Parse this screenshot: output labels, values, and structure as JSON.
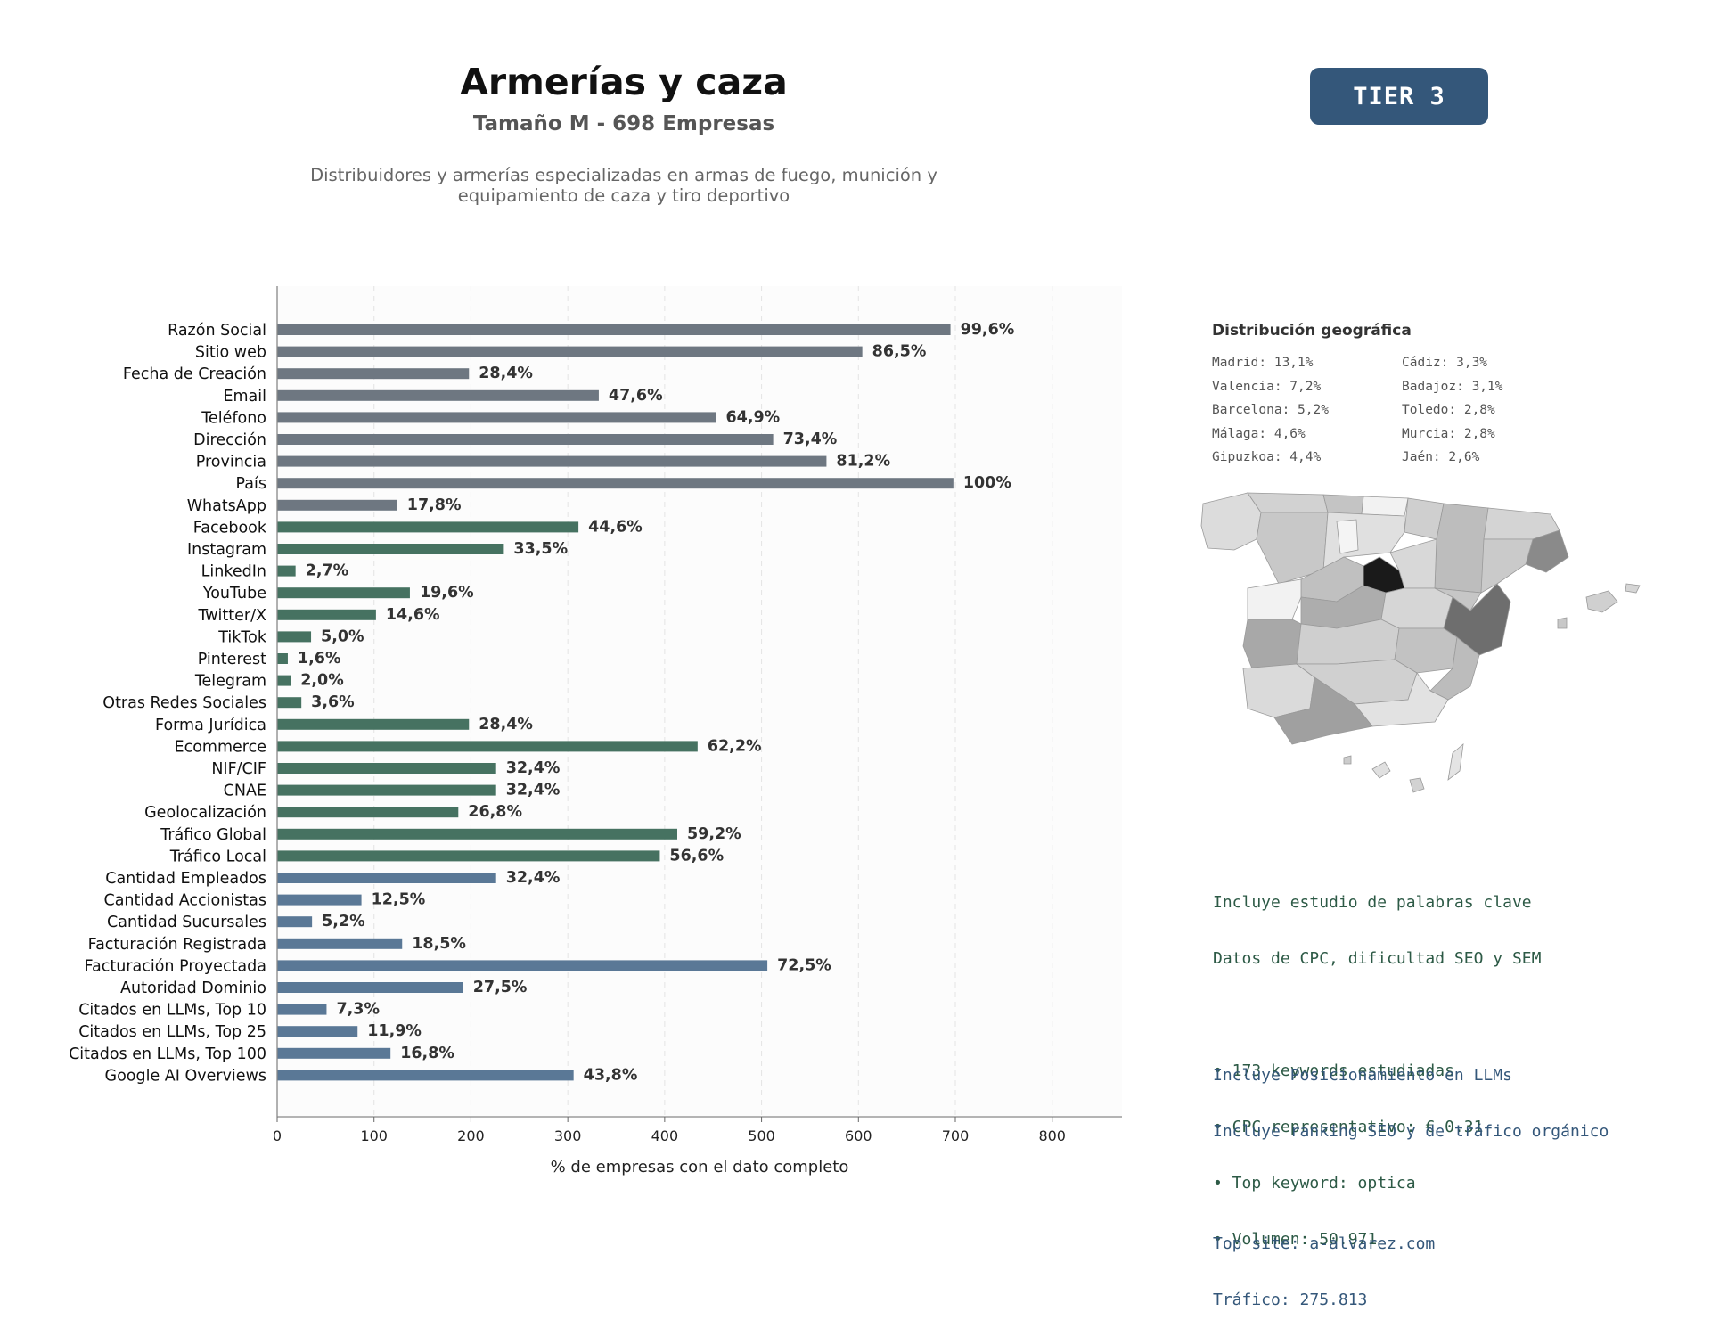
{
  "header": {
    "title": "Armerías y caza",
    "subtitle": "Tamaño M - 698 Empresas",
    "description_line1": "Distribuidores y armerías especializadas en armas de fuego, munición y",
    "description_line2": "equipamiento de caza y tiro deportivo",
    "tier_label": "TIER 3"
  },
  "colors": {
    "basic": "#6e7781",
    "social": "#467261",
    "business": "#5a7896",
    "badge": "#34577a",
    "keyword_text": "#2d5a46",
    "llm_text": "#34577a"
  },
  "chart_data": {
    "type": "bar",
    "orientation": "horizontal",
    "xlabel": "% de empresas con el dato completo",
    "xlim": [
      0,
      872
    ],
    "xticks": [
      0,
      100,
      200,
      300,
      400,
      500,
      600,
      700,
      800
    ],
    "grid": "vertical dashed",
    "categories": [
      "Razón Social",
      "Sitio web",
      "Fecha de Creación",
      "Email",
      "Teléfono",
      "Dirección",
      "Provincia",
      "País",
      "WhatsApp",
      "Facebook",
      "Instagram",
      "LinkedIn",
      "YouTube",
      "Twitter/X",
      "TikTok",
      "Pinterest",
      "Telegram",
      "Otras Redes Sociales",
      "Forma Jurídica",
      "Ecommerce",
      "NIF/CIF",
      "CNAE",
      "Geolocalización",
      "Tráfico Global",
      "Tráfico Local",
      "Cantidad Empleados",
      "Cantidad Accionistas",
      "Cantidad Sucursales",
      "Facturación Registrada",
      "Facturación Proyectada",
      "Autoridad Dominio",
      "Citados en LLMs, Top 10",
      "Citados en LLMs, Top 25",
      "Citados en LLMs, Top 100",
      "Google AI Overviews"
    ],
    "values": [
      695,
      604,
      198,
      332,
      453,
      512,
      567,
      698,
      124,
      311,
      234,
      19,
      137,
      102,
      35,
      11,
      14,
      25,
      198,
      434,
      226,
      226,
      187,
      413,
      395,
      226,
      87,
      36,
      129,
      506,
      192,
      51,
      83,
      117,
      306
    ],
    "labels": [
      "99,6%",
      "86,5%",
      "28,4%",
      "47,6%",
      "64,9%",
      "73,4%",
      "81,2%",
      "100%",
      "17,8%",
      "44,6%",
      "33,5%",
      "2,7%",
      "19,6%",
      "14,6%",
      "5,0%",
      "1,6%",
      "2,0%",
      "3,6%",
      "28,4%",
      "62,2%",
      "32,4%",
      "32,4%",
      "26,8%",
      "59,2%",
      "56,6%",
      "32,4%",
      "12,5%",
      "5,2%",
      "18,5%",
      "72,5%",
      "27,5%",
      "7,3%",
      "11,9%",
      "16,8%",
      "43,8%"
    ],
    "groups": [
      "basic",
      "basic",
      "basic",
      "basic",
      "basic",
      "basic",
      "basic",
      "basic",
      "basic",
      "social",
      "social",
      "social",
      "social",
      "social",
      "social",
      "social",
      "social",
      "social",
      "social",
      "social",
      "social",
      "social",
      "social",
      "social",
      "social",
      "business",
      "business",
      "business",
      "business",
      "business",
      "business",
      "business",
      "business",
      "business",
      "business"
    ]
  },
  "geo": {
    "title": "Distribución geográfica",
    "items": [
      "Madrid: 13,1%",
      "Cádiz: 3,3%",
      "Valencia: 7,2%",
      "Badajoz: 3,1%",
      "Barcelona: 5,2%",
      "Toledo: 2,8%",
      "Málaga: 4,6%",
      "Murcia: 2,8%",
      "Gipuzkoa: 4,4%",
      "Jaén: 2,6%"
    ]
  },
  "keywords": {
    "line1": "Incluye estudio de palabras clave",
    "line2": "Datos de CPC, dificultad SEO y SEM",
    "bullet1": "• 173 keywords estudiadas",
    "bullet2": "• CPC representativo: € 0.31",
    "bullet3": "• Top keyword: optica",
    "bullet4": "• Volumen: 50.971"
  },
  "llm": {
    "line1": "Incluye Posicionamiento en LLMs",
    "line2": "Incluye ranking SEO y de tráfico orgánico",
    "top_site": "Top site: a-alvarez.com",
    "traffic": "Tráfico: 275.813"
  }
}
